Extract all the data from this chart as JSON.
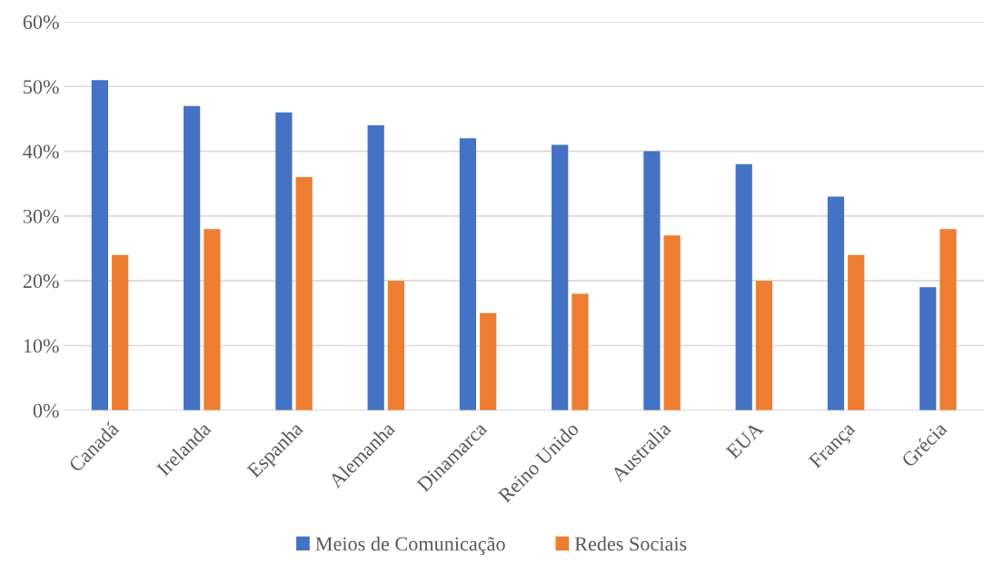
{
  "chart_data": {
    "type": "bar",
    "categories": [
      "Canadá",
      "Irelanda",
      "Espanha",
      "Alemanha",
      "Dinamarca",
      "Reino Unido",
      "Australia",
      "EUA",
      "França",
      "Grécia"
    ],
    "series": [
      {
        "name": "Meios de Comunicação",
        "color": "#4472c4",
        "values": [
          51,
          47,
          46,
          44,
          42,
          41,
          40,
          38,
          33,
          19
        ]
      },
      {
        "name": "Redes Sociais",
        "color": "#ed7d31",
        "values": [
          24,
          28,
          36,
          20,
          15,
          18,
          27,
          20,
          24,
          28
        ]
      }
    ],
    "ylim": [
      0,
      60
    ],
    "yticks": [
      {
        "value": 0,
        "label": "0%"
      },
      {
        "value": 10,
        "label": "10%"
      },
      {
        "value": 20,
        "label": "20%"
      },
      {
        "value": 30,
        "label": "30%"
      },
      {
        "value": 40,
        "label": "40%"
      },
      {
        "value": 50,
        "label": "50%"
      },
      {
        "value": 60,
        "label": "60%"
      }
    ],
    "grid": "y",
    "legend": "bottom"
  }
}
